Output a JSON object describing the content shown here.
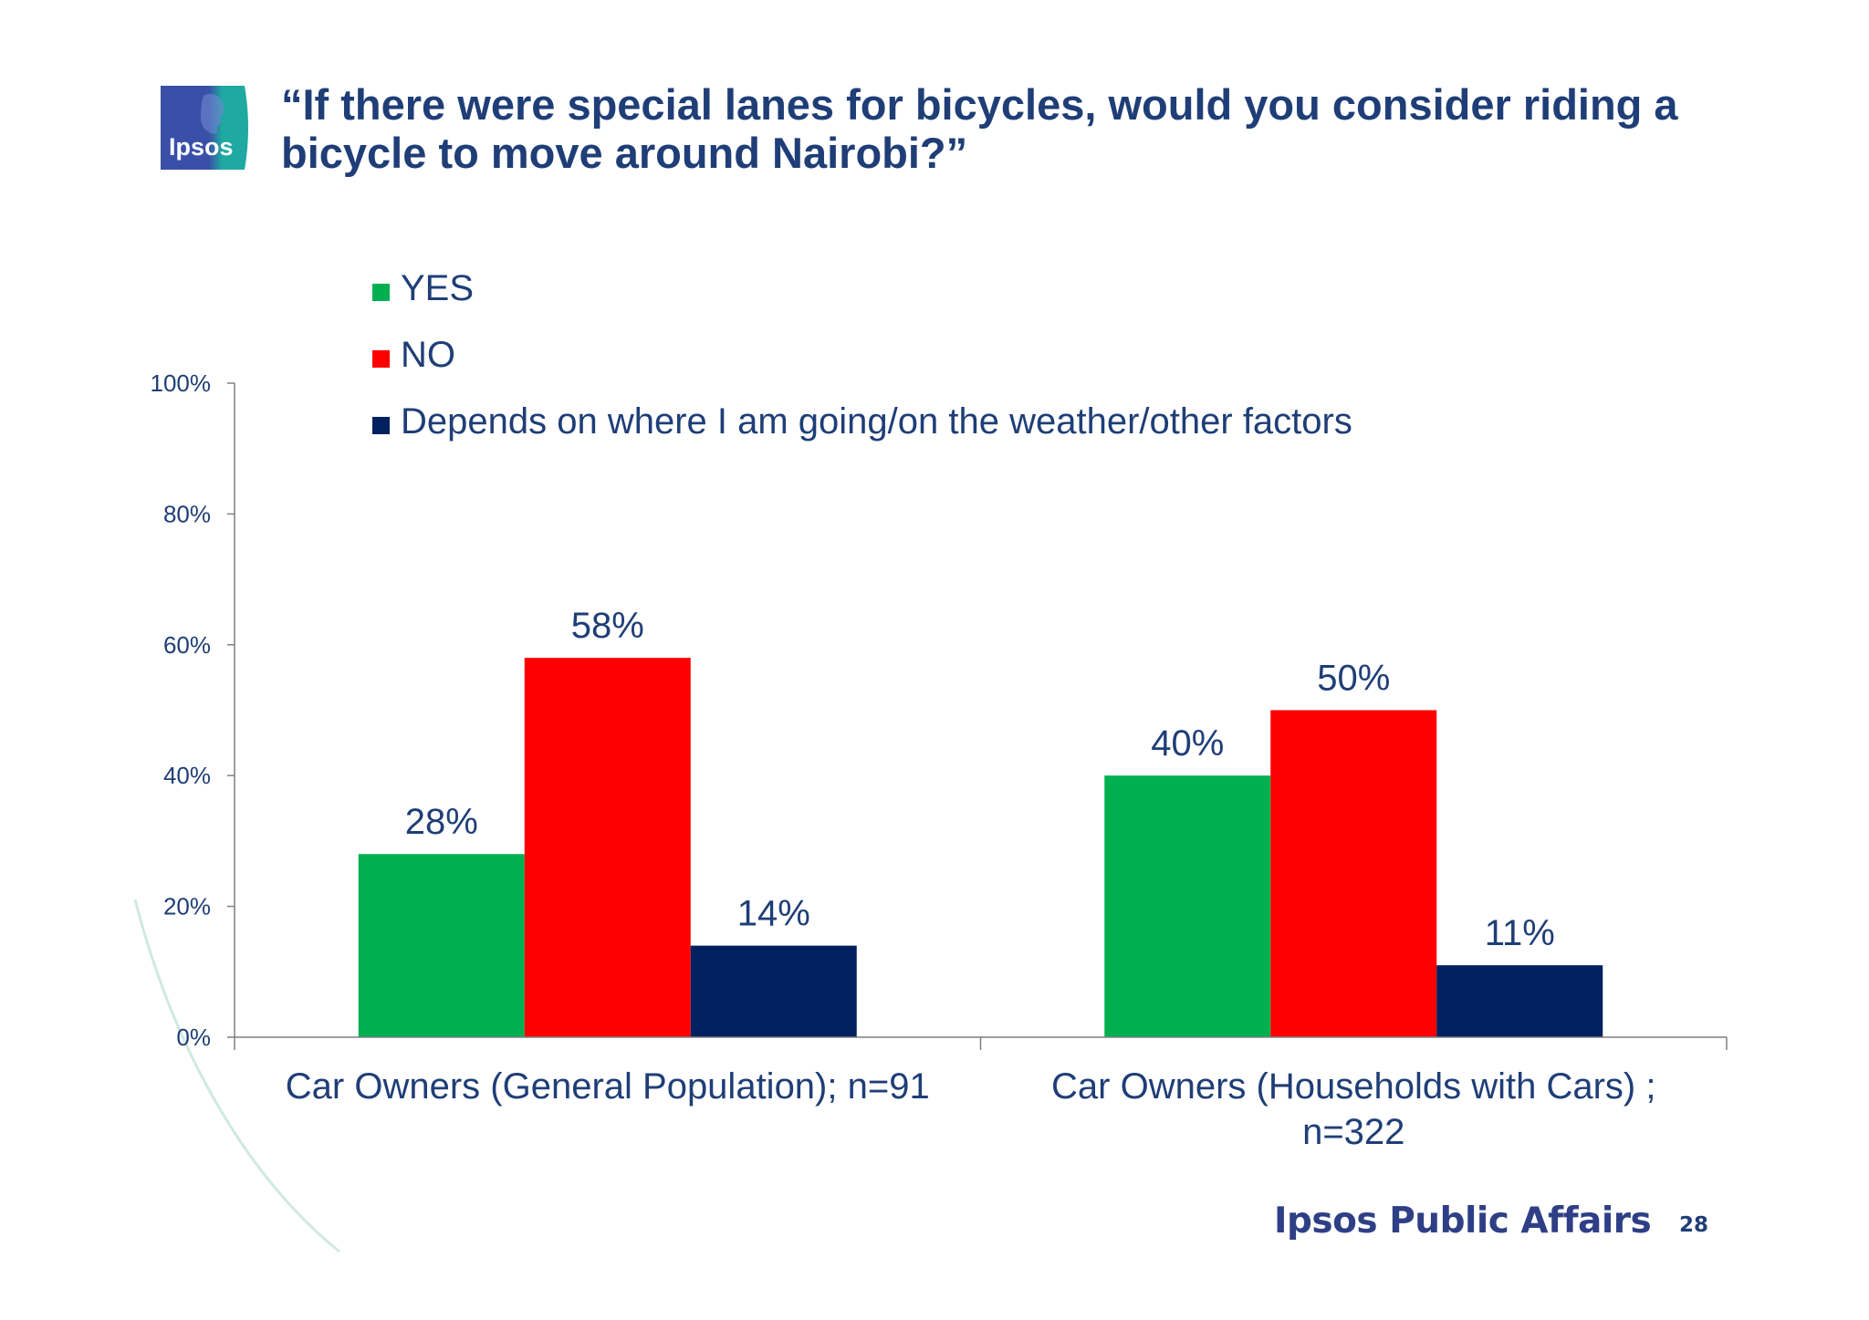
{
  "slide": {
    "title": "“If there were special lanes for bicycles, would you consider riding a bicycle to move around Nairobi?”",
    "logo_text": "Ipsos",
    "footer_brand": "Ipsos Public Affairs",
    "page_number": "28"
  },
  "colors": {
    "title": "#1f3e77",
    "yes": "#00b050",
    "no": "#ff0000",
    "depends": "#002060",
    "axis": "#7f7f7f",
    "logo_blue": "#3a4fa8",
    "logo_teal": "#1fa9a0"
  },
  "chart_data": {
    "type": "bar",
    "categories": [
      [
        "Car Owners (General Population); n=91"
      ],
      [
        "Car Owners (Households with Cars) ;",
        "n=322"
      ]
    ],
    "series": [
      {
        "name": "YES",
        "values": [
          28,
          40
        ],
        "labels": [
          "28%",
          "40%"
        ]
      },
      {
        "name": "NO",
        "values": [
          58,
          50
        ],
        "labels": [
          "58%",
          "50%"
        ]
      },
      {
        "name": "Depends on where I am going/on the weather/other factors",
        "values": [
          14,
          11
        ],
        "labels": [
          "14%",
          "11%"
        ]
      }
    ],
    "ylim": [
      0,
      100
    ],
    "yticks": [
      "0%",
      "20%",
      "40%",
      "60%",
      "80%",
      "100%"
    ],
    "grid": false,
    "legend": "top-left"
  }
}
